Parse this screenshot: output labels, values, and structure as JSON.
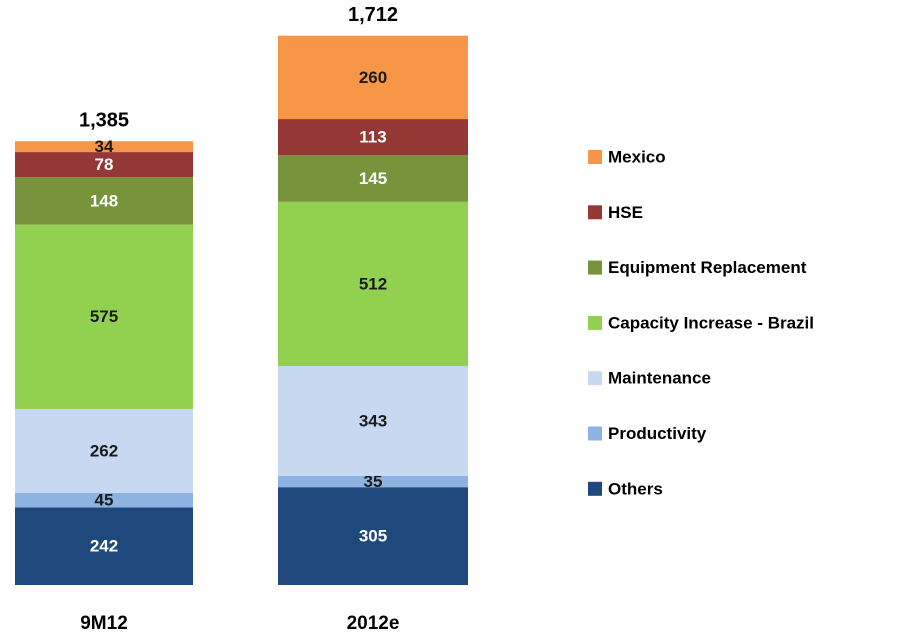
{
  "chart_data": {
    "type": "stacked_bar",
    "categories": [
      "9M12",
      "2012e"
    ],
    "series": [
      {
        "name": "Others",
        "color": "#1f497d",
        "values": [
          242,
          305
        ]
      },
      {
        "name": "Productivity",
        "color": "#8db3e2",
        "values": [
          45,
          35
        ]
      },
      {
        "name": "Maintenance",
        "color": "#c6d9f1",
        "values": [
          262,
          343
        ]
      },
      {
        "name": "Capacity Increase - Brazil",
        "color": "#92d050",
        "values": [
          575,
          512
        ]
      },
      {
        "name": "Equipment Replacement",
        "color": "#77933c",
        "values": [
          148,
          145
        ]
      },
      {
        "name": "HSE",
        "color": "#953735",
        "values": [
          78,
          113
        ]
      },
      {
        "name": "Mexico",
        "color": "#f79646",
        "values": [
          34,
          260
        ]
      }
    ],
    "totals": [
      {
        "value": 1385,
        "label": "1,385"
      },
      {
        "value": 1712,
        "label": "1,712"
      }
    ]
  }
}
